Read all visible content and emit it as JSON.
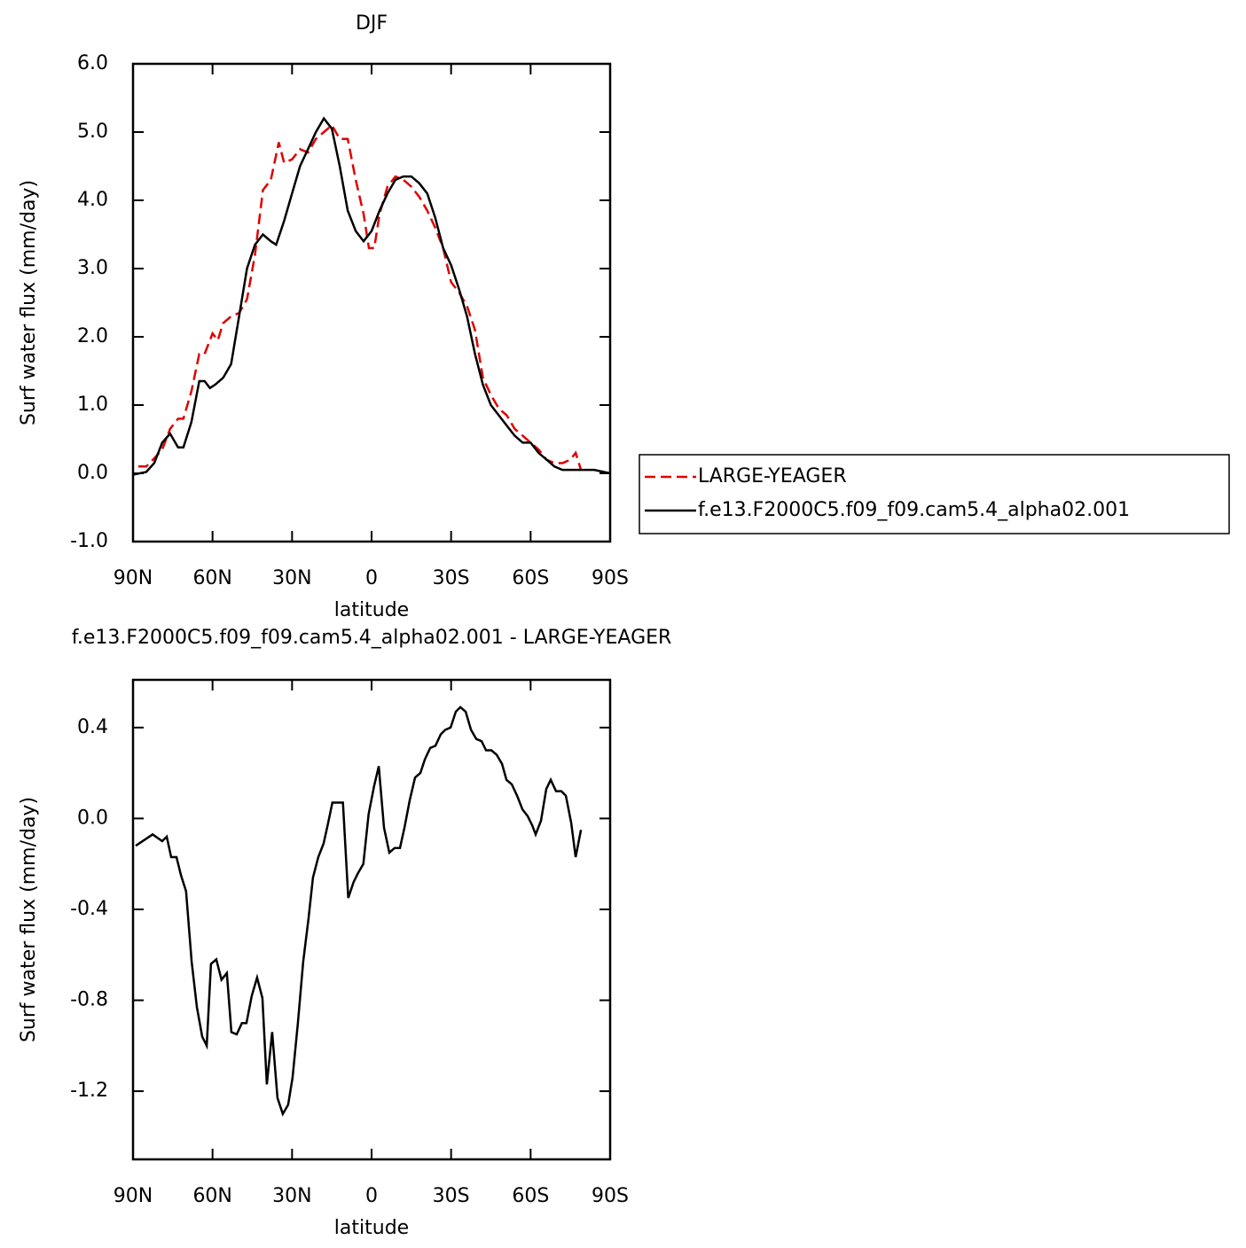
{
  "chart_data": [
    {
      "type": "line",
      "title": "DJF",
      "xlabel": "latitude",
      "ylabel": "Surf water flux (mm/day)",
      "xlim": [
        90,
        -90
      ],
      "xticks": [
        {
          "value": 90,
          "label": "90N"
        },
        {
          "value": 60,
          "label": "60N"
        },
        {
          "value": 30,
          "label": "30N"
        },
        0,
        {
          "value": -30,
          "label": "30S"
        },
        {
          "value": -60,
          "label": "60S"
        },
        {
          "value": -90,
          "label": "90S"
        }
      ],
      "ylim": [
        -1,
        6
      ],
      "yticks": [
        {
          "value": 6,
          "label": "6.0"
        },
        {
          "value": 5,
          "label": "5.0"
        },
        {
          "value": 4,
          "label": "4.0"
        },
        {
          "value": 3,
          "label": "3.0"
        },
        {
          "value": 2,
          "label": "2.0"
        },
        {
          "value": 1,
          "label": "1.0"
        },
        {
          "value": 0,
          "label": "0.0"
        },
        {
          "value": -1,
          "label": "-1.0"
        }
      ],
      "legend": "right",
      "series": [
        {
          "name": "LARGE-YEAGER",
          "color": "#e00000",
          "dashed": true,
          "x": [
            88,
            85,
            82,
            79,
            76,
            73,
            71,
            68,
            65,
            63,
            60,
            58,
            56,
            53,
            50,
            47,
            44,
            41,
            38,
            35,
            33,
            30,
            27,
            24,
            21,
            18,
            15,
            12,
            9,
            6,
            3,
            1,
            -1,
            -3,
            -6,
            -9,
            -12,
            -15,
            -18,
            -21,
            -24,
            -27,
            -30,
            -33,
            -36,
            -39,
            -42,
            -45,
            -48,
            -51,
            -54,
            -57,
            -60,
            -63,
            -66,
            -69,
            -72,
            -75,
            -77,
            -79
          ],
          "values": [
            0.1,
            0.1,
            0.22,
            0.35,
            0.65,
            0.8,
            0.8,
            1.2,
            1.75,
            1.75,
            2.05,
            1.95,
            2.2,
            2.3,
            2.35,
            2.55,
            3.2,
            4.15,
            4.3,
            4.85,
            4.55,
            4.6,
            4.75,
            4.7,
            4.9,
            5.0,
            5.1,
            4.9,
            4.9,
            4.3,
            3.8,
            3.3,
            3.3,
            3.8,
            4.2,
            4.35,
            4.3,
            4.2,
            4.05,
            3.85,
            3.6,
            3.3,
            2.8,
            2.65,
            2.45,
            2.1,
            1.4,
            1.15,
            0.95,
            0.85,
            0.65,
            0.55,
            0.45,
            0.35,
            0.2,
            0.15,
            0.15,
            0.2,
            0.3,
            0.05
          ]
        },
        {
          "name": "f.e13.F2000C5.f09_f09.cam5.4_alpha02.001",
          "color": "#000000",
          "dashed": false,
          "x": [
            90,
            85,
            82,
            79,
            76,
            73,
            71,
            68,
            65,
            63,
            61,
            59,
            56,
            53,
            50,
            47,
            44,
            41,
            38,
            36,
            33,
            30,
            27,
            24,
            21,
            18,
            15,
            12,
            9,
            6,
            3,
            0,
            -3,
            -6,
            -9,
            -12,
            -15,
            -18,
            -21,
            -24,
            -27,
            -30,
            -33,
            -36,
            -39,
            -42,
            -45,
            -48,
            -51,
            -54,
            -57,
            -60,
            -63,
            -66,
            -69,
            -72,
            -75,
            -79,
            -84,
            -90
          ],
          "values": [
            -0.02,
            0.02,
            0.15,
            0.45,
            0.58,
            0.38,
            0.38,
            0.75,
            1.35,
            1.35,
            1.25,
            1.3,
            1.4,
            1.6,
            2.3,
            3.0,
            3.35,
            3.5,
            3.4,
            3.35,
            3.7,
            4.1,
            4.5,
            4.75,
            5.0,
            5.2,
            5.05,
            4.5,
            3.85,
            3.55,
            3.4,
            3.55,
            3.85,
            4.1,
            4.3,
            4.35,
            4.35,
            4.25,
            4.1,
            3.75,
            3.3,
            3.05,
            2.7,
            2.3,
            1.75,
            1.3,
            1.0,
            0.85,
            0.7,
            0.55,
            0.45,
            0.45,
            0.3,
            0.2,
            0.1,
            0.05,
            0.05,
            0.05,
            0.05,
            0.0
          ]
        }
      ]
    },
    {
      "type": "line",
      "title": "f.e13.F2000C5.f09_f09.cam5.4_alpha02.001 - LARGE-YEAGER",
      "xlabel": "latitude",
      "ylabel": "Surf water flux (mm/day)",
      "xlim": [
        90,
        -90
      ],
      "xticks": [
        {
          "value": 90,
          "label": "90N"
        },
        {
          "value": 60,
          "label": "60N"
        },
        {
          "value": 30,
          "label": "30N"
        },
        0,
        {
          "value": -30,
          "label": "30S"
        },
        {
          "value": -60,
          "label": "60S"
        },
        {
          "value": -90,
          "label": "90S"
        }
      ],
      "ylim": [
        -1.5,
        0.61
      ],
      "yticks": [
        0.4,
        {
          "value": 0,
          "label": "0.0"
        },
        -0.4,
        -0.8,
        -1.2
      ],
      "series": [
        {
          "color": "#000000",
          "dashed": false,
          "x": [
            89,
            82.6,
            79,
            77.3,
            75.6,
            73.6,
            71.9,
            70,
            67.9,
            65.9,
            63.9,
            62.2,
            60.6,
            58.6,
            56.6,
            54.6,
            52.9,
            50.9,
            48.9,
            47.2,
            45.2,
            43.2,
            41.2,
            39.5,
            37.5,
            35.5,
            33.5,
            31.5,
            29.8,
            27.8,
            25.8,
            23.8,
            22.1,
            20.1,
            18.1,
            16.4,
            14.8,
            10.8,
            8.8,
            6.8,
            5.1,
            3.1,
            1.1,
            -0.9,
            -2.7,
            -4.7,
            -6.7,
            -8.7,
            -10.7,
            -12.4,
            -14.4,
            -16.4,
            -18.4,
            -20.1,
            -22.1,
            -24.1,
            -26.1,
            -27.8,
            -29.8,
            -31.8,
            -33.5,
            -35.5,
            -37.5,
            -39.5,
            -41.5,
            -43.2,
            -45.2,
            -47.2,
            -49.2,
            -50.9,
            -52.9,
            -54.9,
            -56.9,
            -58.9,
            -60.6,
            -61.9,
            -63.9,
            -65.9,
            -67.6,
            -69.6,
            -71.6,
            -73.3,
            -75.3,
            -77,
            -79
          ],
          "values": [
            -0.12,
            -0.07,
            -0.1,
            -0.08,
            -0.17,
            -0.17,
            -0.25,
            -0.32,
            -0.63,
            -0.83,
            -0.96,
            -1.0,
            -0.64,
            -0.62,
            -0.71,
            -0.68,
            -0.94,
            -0.95,
            -0.9,
            -0.9,
            -0.78,
            -0.7,
            -0.79,
            -1.17,
            -0.94,
            -1.23,
            -1.3,
            -1.26,
            -1.14,
            -0.9,
            -0.63,
            -0.44,
            -0.26,
            -0.17,
            -0.11,
            -0.02,
            0.07,
            0.07,
            -0.35,
            -0.28,
            -0.24,
            -0.2,
            0.02,
            0.14,
            0.23,
            -0.04,
            -0.15,
            -0.13,
            -0.13,
            -0.04,
            0.08,
            0.18,
            0.2,
            0.26,
            0.31,
            0.32,
            0.37,
            0.39,
            0.4,
            0.47,
            0.49,
            0.47,
            0.39,
            0.35,
            0.34,
            0.3,
            0.3,
            0.28,
            0.24,
            0.17,
            0.15,
            0.1,
            0.04,
            0.01,
            -0.03,
            -0.07,
            -0.01,
            0.13,
            0.17,
            0.12,
            0.12,
            0.1,
            -0.02,
            -0.17,
            -0.05
          ]
        }
      ]
    }
  ]
}
